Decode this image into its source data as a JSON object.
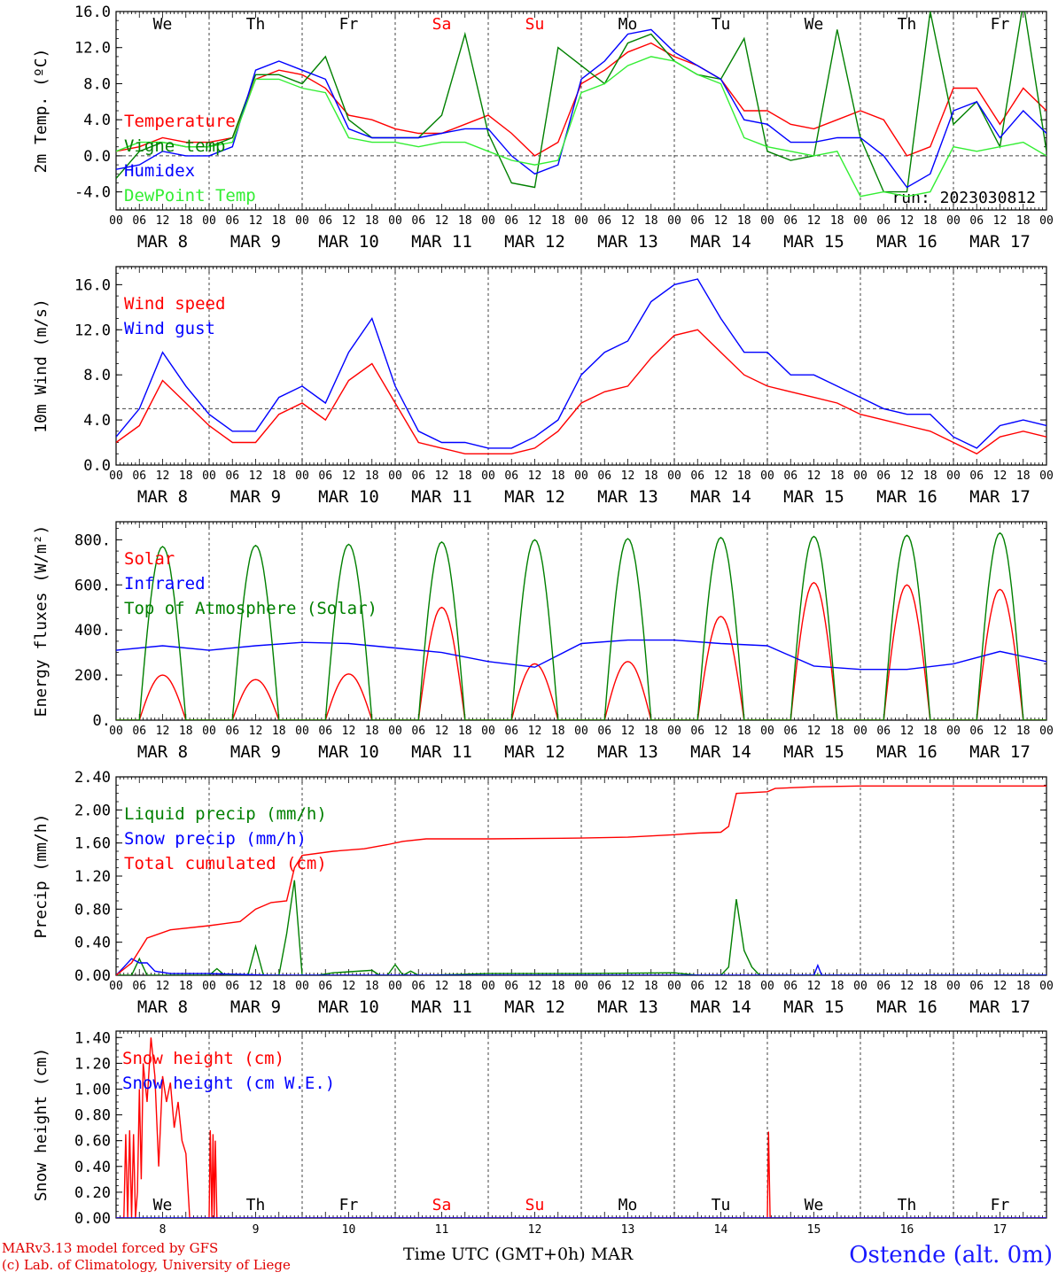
{
  "footer": {
    "model_line": "MARv3.13 model forced by GFS",
    "credit_line": "(c) Lab. of Climatology, University of Liege",
    "x_axis_label": "Time UTC (GMT+0h) MAR",
    "station": "Ostende (alt. 0m)"
  },
  "colors": {
    "red": "#ff0000",
    "dark_green": "#008000",
    "blue": "#0000ff",
    "light_green": "#33ee33",
    "weekend": "#ff0000",
    "text": "#000000"
  },
  "days": {
    "weekday_labels": [
      "We",
      "Th",
      "Fr",
      "Sa",
      "Su",
      "Mo",
      "Tu",
      "We",
      "Th",
      "Fr"
    ],
    "weekend_flags": [
      false,
      false,
      false,
      true,
      true,
      false,
      false,
      false,
      false,
      false
    ],
    "month_day_labels": [
      "MAR  8",
      "MAR  9",
      "MAR 10",
      "MAR 11",
      "MAR 12",
      "MAR 13",
      "MAR 14",
      "MAR 15",
      "MAR 16",
      "MAR 17"
    ],
    "day_numbers": [
      "8",
      "9",
      "10",
      "11",
      "12",
      "13",
      "14",
      "15",
      "16",
      "17"
    ],
    "hour_labels": [
      "00",
      "06",
      "12",
      "18"
    ],
    "final_hour_label": "00"
  },
  "chart_data": [
    {
      "id": "temperature",
      "type": "line",
      "ylabel": "2m Temp. (ºC)",
      "ylim": [
        -6,
        16
      ],
      "yticks": [
        -4,
        0,
        4,
        8,
        12,
        16
      ],
      "ytick_labels": [
        "-4.0",
        "0.0",
        "4.0",
        "8.0",
        "12.0",
        "16.0"
      ],
      "reference_line": 0,
      "annotation": "run: 2023030812",
      "x_unit": "hours since 2023-03-08 00 UTC",
      "series": [
        {
          "name": "Temperature",
          "color": "#ff0000",
          "x": [
            0,
            6,
            12,
            18,
            24,
            30,
            36,
            42,
            48,
            54,
            60,
            66,
            72,
            78,
            84,
            90,
            96,
            102,
            108,
            114,
            120,
            126,
            132,
            138,
            144,
            150,
            156,
            162,
            168,
            174,
            180,
            186,
            192,
            198,
            204,
            210,
            216,
            222,
            228,
            234,
            240
          ],
          "y": [
            0.5,
            1.0,
            2.0,
            1.5,
            1.5,
            2.0,
            8.5,
            9.5,
            9.0,
            7.5,
            4.5,
            4.0,
            3.0,
            2.5,
            2.5,
            3.5,
            4.5,
            2.5,
            0.0,
            1.5,
            8.0,
            9.5,
            11.5,
            12.5,
            11.0,
            10.0,
            8.5,
            5.0,
            5.0,
            3.5,
            3.0,
            4.0,
            5.0,
            4.0,
            0.0,
            1.0,
            7.5,
            7.5,
            3.5,
            7.5,
            5.0
          ]
        },
        {
          "name": "Vigne temp",
          "color": "#008000",
          "x": [
            0,
            6,
            12,
            18,
            24,
            30,
            36,
            42,
            48,
            54,
            60,
            66,
            72,
            78,
            84,
            90,
            96,
            102,
            108,
            114,
            120,
            126,
            132,
            138,
            144,
            150,
            156,
            162,
            168,
            174,
            180,
            186,
            192,
            198,
            204,
            210,
            216,
            222,
            228,
            234,
            240
          ],
          "y": [
            -2.5,
            0.5,
            1.5,
            1.0,
            1.0,
            2.0,
            9.0,
            9.0,
            8.0,
            11.0,
            4.0,
            2.0,
            2.0,
            2.0,
            4.5,
            13.5,
            2.5,
            -3.0,
            -3.5,
            12.0,
            10.0,
            8.0,
            12.5,
            13.5,
            10.5,
            9.0,
            8.5,
            13.0,
            0.5,
            -0.5,
            0.0,
            14.0,
            2.0,
            -4.0,
            -4.0,
            16.0,
            3.5,
            6.0,
            1.0,
            17.0,
            0.5
          ]
        },
        {
          "name": "Humidex",
          "color": "#0000ff",
          "x": [
            0,
            6,
            12,
            18,
            24,
            30,
            36,
            42,
            48,
            54,
            60,
            66,
            72,
            78,
            84,
            90,
            96,
            102,
            108,
            114,
            120,
            126,
            132,
            138,
            144,
            150,
            156,
            162,
            168,
            174,
            180,
            186,
            192,
            198,
            204,
            210,
            216,
            222,
            228,
            234,
            240
          ],
          "y": [
            -1.5,
            -1.0,
            0.5,
            0.0,
            0.0,
            1.0,
            9.5,
            10.5,
            9.5,
            8.5,
            3.0,
            2.0,
            2.0,
            2.0,
            2.5,
            3.0,
            3.0,
            0.0,
            -2.0,
            -1.0,
            8.5,
            10.5,
            13.5,
            14.0,
            11.5,
            10.0,
            8.5,
            4.0,
            3.5,
            1.5,
            1.5,
            2.0,
            2.0,
            0.0,
            -3.5,
            -2.0,
            5.0,
            6.0,
            2.0,
            5.0,
            2.5
          ]
        },
        {
          "name": "DewPoint Temp",
          "color": "#33ee33",
          "x": [
            0,
            6,
            12,
            18,
            24,
            30,
            36,
            42,
            48,
            54,
            60,
            66,
            72,
            78,
            84,
            90,
            96,
            102,
            108,
            114,
            120,
            126,
            132,
            138,
            144,
            150,
            156,
            162,
            168,
            174,
            180,
            186,
            192,
            198,
            204,
            210,
            216,
            222,
            228,
            234,
            240
          ],
          "y": [
            0.5,
            1.5,
            1.5,
            1.0,
            1.0,
            1.5,
            8.5,
            8.5,
            7.5,
            7.0,
            2.0,
            1.5,
            1.5,
            1.0,
            1.5,
            1.5,
            0.5,
            -0.5,
            -1.0,
            -0.5,
            7.0,
            8.0,
            10.0,
            11.0,
            10.5,
            9.0,
            8.0,
            2.0,
            1.0,
            0.5,
            0.0,
            0.5,
            -4.5,
            -4.0,
            -4.5,
            -4.0,
            1.0,
            0.5,
            1.0,
            1.5,
            0.0
          ]
        }
      ]
    },
    {
      "id": "wind",
      "type": "line",
      "ylabel": "10m Wind (m/s)",
      "ylim": [
        0,
        17.6
      ],
      "yticks": [
        0,
        4,
        8,
        12,
        16
      ],
      "ytick_labels": [
        "0.0",
        "4.0",
        "8.0",
        "12.0",
        "16.0"
      ],
      "reference_line": 5,
      "x_unit": "hours since 2023-03-08 00 UTC",
      "series": [
        {
          "name": "Wind speed",
          "color": "#ff0000",
          "x": [
            0,
            6,
            12,
            18,
            24,
            30,
            36,
            42,
            48,
            54,
            60,
            66,
            72,
            78,
            84,
            90,
            96,
            102,
            108,
            114,
            120,
            126,
            132,
            138,
            144,
            150,
            156,
            162,
            168,
            174,
            180,
            186,
            192,
            198,
            204,
            210,
            216,
            222,
            228,
            234,
            240
          ],
          "y": [
            2.0,
            3.5,
            7.5,
            5.5,
            3.5,
            2.0,
            2.0,
            4.5,
            5.5,
            4.0,
            7.5,
            9.0,
            5.5,
            2.0,
            1.5,
            1.0,
            1.0,
            1.0,
            1.5,
            3.0,
            5.5,
            6.5,
            7.0,
            9.5,
            11.5,
            12.0,
            10.0,
            8.0,
            7.0,
            6.5,
            6.0,
            5.5,
            4.5,
            4.0,
            3.5,
            3.0,
            2.0,
            1.0,
            2.5,
            3.0,
            2.5
          ]
        },
        {
          "name": "Wind gust",
          "color": "#0000ff",
          "x": [
            0,
            6,
            12,
            18,
            24,
            30,
            36,
            42,
            48,
            54,
            60,
            66,
            72,
            78,
            84,
            90,
            96,
            102,
            108,
            114,
            120,
            126,
            132,
            138,
            144,
            150,
            156,
            162,
            168,
            174,
            180,
            186,
            192,
            198,
            204,
            210,
            216,
            222,
            228,
            234,
            240
          ],
          "y": [
            2.5,
            5.0,
            10.0,
            7.0,
            4.5,
            3.0,
            3.0,
            6.0,
            7.0,
            5.5,
            10.0,
            13.0,
            7.0,
            3.0,
            2.0,
            2.0,
            1.5,
            1.5,
            2.5,
            4.0,
            8.0,
            10.0,
            11.0,
            14.5,
            16.0,
            16.5,
            13.0,
            10.0,
            10.0,
            8.0,
            8.0,
            7.0,
            6.0,
            5.0,
            4.5,
            4.5,
            2.5,
            1.5,
            3.5,
            4.0,
            3.5
          ]
        }
      ]
    },
    {
      "id": "energy",
      "type": "line",
      "ylabel": "Energy fluxes (W/m²)",
      "ylim": [
        0,
        880
      ],
      "yticks": [
        0,
        200,
        400,
        600,
        800
      ],
      "ytick_labels": [
        "0.",
        "200.",
        "400.",
        "600.",
        "800."
      ],
      "solar_window_hours": [
        6,
        18
      ],
      "series": [
        {
          "name": "Solar",
          "color": "#ff0000",
          "daily_peak": [
            200,
            180,
            205,
            500,
            250,
            260,
            460,
            610,
            600,
            580
          ]
        },
        {
          "name": "Infrared",
          "color": "#0000ff",
          "x": [
            0,
            12,
            24,
            36,
            48,
            60,
            72,
            84,
            96,
            108,
            120,
            132,
            144,
            156,
            168,
            180,
            192,
            204,
            216,
            228,
            240
          ],
          "y": [
            310,
            330,
            310,
            330,
            345,
            340,
            320,
            300,
            260,
            235,
            340,
            355,
            355,
            340,
            330,
            240,
            225,
            225,
            250,
            305,
            260
          ]
        },
        {
          "name": "Top of Atmosphere (Solar)",
          "color": "#008000",
          "daily_peak": [
            770,
            775,
            780,
            790,
            800,
            805,
            810,
            815,
            820,
            830
          ]
        }
      ]
    },
    {
      "id": "precip",
      "type": "line",
      "ylabel": "Precip (mm/h)",
      "ylim": [
        0,
        2.4
      ],
      "yticks": [
        0,
        0.4,
        0.8,
        1.2,
        1.6,
        2.0,
        2.4
      ],
      "ytick_labels": [
        "0.00",
        "0.40",
        "0.80",
        "1.20",
        "1.60",
        "2.00",
        "2.40"
      ],
      "x_unit": "hours since 2023-03-08 00 UTC",
      "series": [
        {
          "name": "Liquid precip (mm/h)",
          "color": "#008000",
          "x": [
            0,
            4,
            6,
            8,
            10,
            24,
            26,
            28,
            34,
            36,
            38,
            42,
            44,
            46,
            48,
            50,
            52,
            56,
            66,
            68,
            70,
            72,
            74,
            76,
            78,
            80,
            96,
            120,
            144,
            150,
            156,
            158,
            160,
            162,
            164,
            166,
            168,
            170,
            176,
            240
          ],
          "y": [
            0,
            0,
            0.2,
            0,
            0,
            0,
            0.08,
            0,
            0,
            0.35,
            0,
            0,
            0.5,
            1.15,
            0,
            0,
            0,
            0.03,
            0.06,
            0,
            0,
            0.13,
            0,
            0.05,
            0,
            0,
            0.02,
            0.02,
            0.03,
            0,
            0,
            0.1,
            0.92,
            0.3,
            0.1,
            0,
            0,
            0,
            0,
            0
          ]
        },
        {
          "name": "Snow precip (mm/h)",
          "color": "#0000ff",
          "x": [
            0,
            2,
            4,
            6,
            8,
            10,
            14,
            20,
            24,
            40,
            180,
            181,
            182,
            240
          ],
          "y": [
            0,
            0.1,
            0.2,
            0.15,
            0.15,
            0.05,
            0.02,
            0.02,
            0.02,
            0,
            0,
            0.12,
            0,
            0
          ]
        },
        {
          "name": "Total cumulated (cm)",
          "color": "#ff0000",
          "x": [
            0,
            4,
            8,
            14,
            24,
            32,
            36,
            40,
            44,
            46,
            48,
            56,
            64,
            70,
            74,
            80,
            96,
            120,
            132,
            144,
            150,
            156,
            158,
            160,
            168,
            170,
            180,
            192,
            240
          ],
          "y": [
            0,
            0.15,
            0.45,
            0.55,
            0.6,
            0.65,
            0.8,
            0.88,
            0.9,
            1.3,
            1.45,
            1.5,
            1.53,
            1.58,
            1.62,
            1.65,
            1.65,
            1.66,
            1.67,
            1.7,
            1.72,
            1.73,
            1.8,
            2.2,
            2.22,
            2.26,
            2.28,
            2.29,
            2.29
          ]
        }
      ]
    },
    {
      "id": "snow",
      "type": "line",
      "ylabel": "Snow height (cm)",
      "ylim": [
        0,
        1.45
      ],
      "yticks": [
        0,
        0.2,
        0.4,
        0.6,
        0.8,
        1.0,
        1.2,
        1.4
      ],
      "ytick_labels": [
        "0.00",
        "0.20",
        "0.40",
        "0.60",
        "0.80",
        "1.00",
        "1.20",
        "1.40"
      ],
      "x_unit": "hours since 2023-03-08 00 UTC",
      "series": [
        {
          "name": "Snow height (cm)",
          "color": "#ff0000",
          "x": [
            0,
            2,
            2.5,
            3,
            3.5,
            4,
            4.5,
            5,
            5.5,
            6,
            6.5,
            7,
            8,
            9,
            10,
            11,
            12,
            13,
            14,
            15,
            16,
            17,
            18,
            19,
            24,
            24.3,
            24.7,
            25,
            25.3,
            25.6,
            26,
            168,
            168.3,
            168.7,
            169,
            240
          ],
          "y": [
            0,
            0,
            0.65,
            0,
            0.68,
            0,
            0.65,
            0,
            0.2,
            1.0,
            0.3,
            1.2,
            0.9,
            1.4,
            1.1,
            0.4,
            1.1,
            0.9,
            1.05,
            0.7,
            0.9,
            0.6,
            0.5,
            0,
            0,
            0.68,
            0,
            0.65,
            0,
            0.6,
            0,
            0,
            0.67,
            0,
            0,
            0
          ]
        },
        {
          "name": "Snow height (cm W.E.)",
          "color": "#0000ff",
          "x": [
            0,
            240
          ],
          "y": [
            0,
            0
          ]
        }
      ]
    }
  ]
}
